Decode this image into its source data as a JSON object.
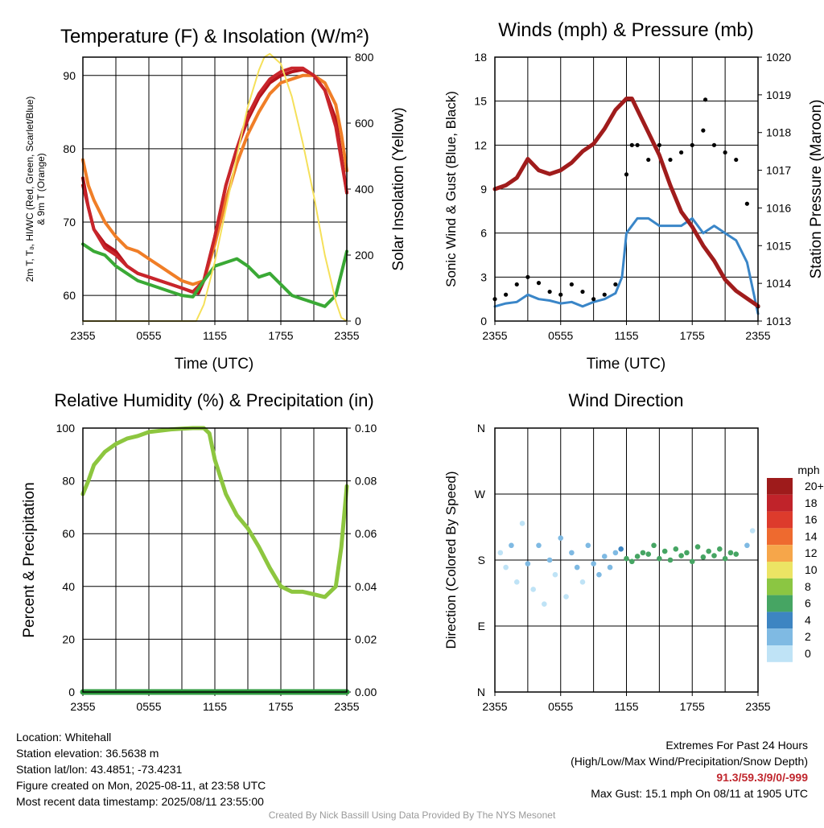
{
  "charts": {
    "temperature": {
      "title": "Temperature (F) & Insolation (W/m²)",
      "xlabel": "Time (UTC)",
      "ylabel_line1": "2m T, Tₔ, HI/WC (Red, Green, Scarlet/Blue)",
      "ylabel_line2": "& 9m T (Orange)",
      "ylabel_right": "Solar Insolation (Yellow)"
    },
    "winds": {
      "title": "Winds (mph) & Pressure (mb)",
      "xlabel": "Time (UTC)",
      "ylabel": "Sonic Wind & Gust (Blue, Black)",
      "ylabel_right": "Station Pressure (Maroon)"
    },
    "humidity": {
      "title": "Relative Humidity (%) & Precipitation (in)",
      "ylabel": "Percent & Precipitation"
    },
    "direction": {
      "title": "Wind Direction",
      "ylabel": "Direction (Colored By Speed)",
      "legend_title": "mph"
    }
  },
  "chart_data": [
    {
      "type": "line",
      "title": "Temperature (F) & Insolation (W/m²)",
      "xlabel": "Time (UTC)",
      "x_ticks": [
        "2355",
        "0555",
        "1155",
        "1755",
        "2355"
      ],
      "xlim_hours": [
        0,
        24
      ],
      "ylim": [
        56.5,
        92.5
      ],
      "y_ticks": [
        60,
        70,
        80,
        90
      ],
      "y2lim": [
        0,
        800
      ],
      "y2_ticks": [
        0,
        200,
        400,
        600,
        800
      ],
      "series": [
        {
          "name": "2m T",
          "color": "#b5121b",
          "axis": "left",
          "x": [
            0,
            0.5,
            1,
            2,
            3,
            4,
            5,
            6,
            7,
            8,
            9,
            9.9,
            10.5,
            11,
            12,
            13,
            14,
            15,
            16,
            17,
            18,
            19,
            20,
            21,
            22,
            23,
            23.5,
            24
          ],
          "y": [
            76,
            72,
            69,
            67,
            66,
            64,
            63,
            62.5,
            62,
            61.5,
            61,
            60.5,
            60.3,
            62,
            68,
            75,
            80,
            84,
            87,
            89,
            90,
            90.5,
            90.8,
            90,
            88,
            84,
            79,
            74
          ]
        },
        {
          "name": "9m T",
          "color": "#f07e27",
          "axis": "left",
          "x": [
            0,
            0.5,
            1,
            2,
            3,
            4,
            5,
            6,
            7,
            8,
            9,
            10,
            11,
            12,
            13,
            14,
            15,
            16,
            17,
            18,
            19,
            20,
            21,
            22,
            23,
            23.5,
            24
          ],
          "y": [
            78.5,
            75,
            73,
            70,
            68,
            66.5,
            66,
            65,
            64,
            63,
            62,
            61.5,
            62,
            67,
            73,
            78,
            82,
            85,
            87.5,
            89,
            89.5,
            90,
            90,
            89,
            86,
            82,
            77
          ]
        },
        {
          "name": "HI/WC",
          "color": "#c8252b",
          "axis": "left",
          "x": [
            0,
            1,
            2,
            3,
            4,
            5,
            6,
            7,
            8,
            9,
            10,
            11,
            12,
            13,
            14,
            15,
            16,
            17,
            18,
            19,
            20,
            21,
            22,
            23,
            24
          ],
          "y": [
            75,
            69,
            66.5,
            65.5,
            64,
            63,
            62.5,
            62,
            61.5,
            61,
            60.5,
            62,
            68,
            75,
            80,
            84.5,
            87.5,
            89.5,
            90.5,
            91,
            91,
            90,
            88,
            83,
            74
          ]
        },
        {
          "name": "Td",
          "color": "#3aa935",
          "axis": "left",
          "x": [
            0,
            1,
            2,
            3,
            4,
            5,
            6,
            7,
            8,
            9,
            10,
            11,
            12,
            13,
            14,
            15,
            16,
            17,
            18,
            19,
            20,
            21,
            22,
            23,
            23.5,
            24
          ],
          "y": [
            67,
            66,
            65.5,
            64,
            63,
            62,
            61.5,
            61,
            60.5,
            60,
            59.8,
            62,
            64,
            64.5,
            65,
            64,
            62.5,
            63,
            61.5,
            60,
            59.5,
            59,
            58.5,
            60,
            63,
            66
          ]
        },
        {
          "name": "Solar Insolation",
          "color": "#f5e05a",
          "axis": "right",
          "x": [
            0,
            5,
            9,
            10.3,
            11,
            12,
            13,
            14,
            15,
            16,
            16.5,
            17,
            18,
            19,
            20,
            21,
            22,
            23,
            23.5,
            24
          ],
          "y": [
            0,
            0,
            0,
            0,
            50,
            180,
            340,
            500,
            650,
            760,
            800,
            810,
            780,
            680,
            540,
            380,
            200,
            60,
            10,
            0
          ]
        }
      ]
    },
    {
      "type": "line",
      "title": "Winds (mph) & Pressure (mb)",
      "xlabel": "Time (UTC)",
      "x_ticks": [
        "2355",
        "0555",
        "1155",
        "1755",
        "2355"
      ],
      "xlim_hours": [
        0,
        24
      ],
      "ylim": [
        0,
        18
      ],
      "y_ticks": [
        0,
        3,
        6,
        9,
        12,
        15,
        18
      ],
      "y2lim": [
        1013,
        1020
      ],
      "y2_ticks": [
        1013,
        1014,
        1015,
        1016,
        1017,
        1018,
        1019,
        1020
      ],
      "series": [
        {
          "name": "Sonic Wind",
          "color": "#3a86c8",
          "axis": "left",
          "x": [
            0,
            1,
            2,
            3,
            4,
            5,
            6,
            7,
            8,
            9,
            10,
            11,
            11.6,
            12,
            13,
            14,
            15,
            16,
            17,
            18,
            19,
            20,
            21,
            22,
            23,
            24
          ],
          "y": [
            1,
            1.2,
            1.3,
            1.8,
            1.5,
            1.4,
            1.2,
            1.3,
            1,
            1.3,
            1.5,
            1.9,
            3,
            6,
            7,
            7,
            6.5,
            6.5,
            6.5,
            7,
            6,
            6.5,
            6,
            5.5,
            4,
            0.5
          ]
        },
        {
          "name": "Gust",
          "color": "#000000",
          "axis": "left",
          "style": "points",
          "x": [
            0,
            1,
            2,
            3,
            4,
            5,
            6,
            7,
            8,
            9,
            10,
            11,
            12,
            12.5,
            13,
            14,
            15,
            16,
            17,
            18,
            19,
            19.2,
            20,
            21,
            22,
            23,
            24
          ],
          "y": [
            1.5,
            1.8,
            2.5,
            3,
            2.6,
            2,
            1.8,
            2.5,
            2,
            1.5,
            1.8,
            2.5,
            10,
            12,
            12,
            11,
            12,
            11,
            11.5,
            12,
            13,
            15.1,
            12,
            11.5,
            11,
            8,
            1
          ]
        },
        {
          "name": "Station Pressure",
          "color": "#a01c1c",
          "axis": "right",
          "x": [
            0,
            1,
            2,
            3,
            4,
            5,
            6,
            7,
            8,
            9,
            10,
            11,
            12,
            12.5,
            13,
            14,
            15,
            16,
            17,
            18,
            19,
            20,
            21,
            22,
            23,
            24
          ],
          "y": [
            1016.5,
            1016.6,
            1016.8,
            1017.3,
            1017.0,
            1016.9,
            1017.0,
            1017.2,
            1017.5,
            1017.7,
            1018.1,
            1018.6,
            1018.9,
            1018.9,
            1018.6,
            1018.0,
            1017.4,
            1016.6,
            1015.9,
            1015.5,
            1015.0,
            1014.6,
            1014.1,
            1013.8,
            1013.6,
            1013.4
          ]
        }
      ]
    },
    {
      "type": "line",
      "title": "Relative Humidity (%) & Precipitation (in)",
      "x_ticks": [
        "2355",
        "0555",
        "1155",
        "1755",
        "2355"
      ],
      "xlim_hours": [
        0,
        24
      ],
      "ylim": [
        0,
        100
      ],
      "y_ticks": [
        0,
        20,
        40,
        60,
        80,
        100
      ],
      "y2lim": [
        0,
        0.1
      ],
      "y2_ticks": [
        "0.00",
        "0.02",
        "0.04",
        "0.06",
        "0.08",
        "0.10"
      ],
      "series": [
        {
          "name": "Relative Humidity",
          "color": "#8dc63f",
          "axis": "left",
          "x": [
            0,
            0.5,
            1,
            2,
            3,
            4,
            5,
            6,
            7,
            8,
            9,
            10,
            11,
            11.5,
            12,
            13,
            14,
            15,
            16,
            17,
            18,
            19,
            20,
            21,
            22,
            23,
            23.5,
            24
          ],
          "y": [
            75,
            80,
            86,
            91,
            94,
            96,
            97,
            98.5,
            99,
            99.5,
            99.8,
            100,
            100,
            98,
            88,
            75,
            67,
            62,
            55,
            47,
            40,
            38,
            38,
            37,
            36,
            40,
            55,
            78
          ]
        },
        {
          "name": "Precipitation",
          "color": "#2e9a3e",
          "axis": "right",
          "x": [
            0,
            24
          ],
          "y": [
            0,
            0
          ]
        }
      ]
    },
    {
      "type": "scatter",
      "title": "Wind Direction",
      "ylabel": "Direction (Colored By Speed)",
      "x_ticks": [
        "2355",
        "0555",
        "1155",
        "1755",
        "2355"
      ],
      "xlim_hours": [
        0,
        24
      ],
      "ylim": [
        0,
        360
      ],
      "y_ticks": [
        "N",
        "E",
        "S",
        "W",
        "N"
      ],
      "legend_title": "mph",
      "legend": [
        "20+",
        "18",
        "16",
        "14",
        "12",
        "10",
        "8",
        "6",
        "4",
        "2",
        "0"
      ],
      "legend_colors": [
        "#9e1b1b",
        "#c0232a",
        "#dd3b2c",
        "#ee6a2f",
        "#f6a64a",
        "#ece464",
        "#8bc642",
        "#46a563",
        "#3d85c2",
        "#7fbae3",
        "#bfe3f6"
      ],
      "points": [
        {
          "x": 0.5,
          "y": 190,
          "mph": 1
        },
        {
          "x": 1,
          "y": 170,
          "mph": 1
        },
        {
          "x": 1.5,
          "y": 200,
          "mph": 2
        },
        {
          "x": 2,
          "y": 150,
          "mph": 1
        },
        {
          "x": 2.5,
          "y": 230,
          "mph": 1
        },
        {
          "x": 3,
          "y": 175,
          "mph": 2
        },
        {
          "x": 3.5,
          "y": 140,
          "mph": 1
        },
        {
          "x": 4,
          "y": 200,
          "mph": 2
        },
        {
          "x": 4.5,
          "y": 120,
          "mph": 1
        },
        {
          "x": 5,
          "y": 180,
          "mph": 3
        },
        {
          "x": 5.5,
          "y": 160,
          "mph": 1
        },
        {
          "x": 6,
          "y": 210,
          "mph": 2
        },
        {
          "x": 6.5,
          "y": 130,
          "mph": 1
        },
        {
          "x": 7,
          "y": 190,
          "mph": 3
        },
        {
          "x": 7.5,
          "y": 170,
          "mph": 2
        },
        {
          "x": 8,
          "y": 150,
          "mph": 1
        },
        {
          "x": 8.5,
          "y": 200,
          "mph": 2
        },
        {
          "x": 9,
          "y": 175,
          "mph": 3
        },
        {
          "x": 9.5,
          "y": 160,
          "mph": 2
        },
        {
          "x": 10,
          "y": 185,
          "mph": 2
        },
        {
          "x": 10.5,
          "y": 170,
          "mph": 3
        },
        {
          "x": 11,
          "y": 190,
          "mph": 2
        },
        {
          "x": 11.5,
          "y": 195,
          "mph": 4
        },
        {
          "x": 12,
          "y": 182,
          "mph": 6
        },
        {
          "x": 12.5,
          "y": 178,
          "mph": 7
        },
        {
          "x": 13,
          "y": 185,
          "mph": 7
        },
        {
          "x": 13.5,
          "y": 190,
          "mph": 6
        },
        {
          "x": 14,
          "y": 188,
          "mph": 7
        },
        {
          "x": 14.5,
          "y": 200,
          "mph": 6
        },
        {
          "x": 15,
          "y": 182,
          "mph": 7
        },
        {
          "x": 15.5,
          "y": 192,
          "mph": 6
        },
        {
          "x": 16,
          "y": 180,
          "mph": 7
        },
        {
          "x": 16.5,
          "y": 195,
          "mph": 6
        },
        {
          "x": 17,
          "y": 186,
          "mph": 7
        },
        {
          "x": 17.5,
          "y": 190,
          "mph": 6
        },
        {
          "x": 18,
          "y": 178,
          "mph": 7
        },
        {
          "x": 18.5,
          "y": 198,
          "mph": 6
        },
        {
          "x": 19,
          "y": 184,
          "mph": 7
        },
        {
          "x": 19.5,
          "y": 192,
          "mph": 7
        },
        {
          "x": 20,
          "y": 186,
          "mph": 6
        },
        {
          "x": 20.5,
          "y": 195,
          "mph": 7
        },
        {
          "x": 21,
          "y": 182,
          "mph": 6
        },
        {
          "x": 21.5,
          "y": 190,
          "mph": 7
        },
        {
          "x": 22,
          "y": 188,
          "mph": 6
        },
        {
          "x": 23,
          "y": 200,
          "mph": 2
        },
        {
          "x": 23.5,
          "y": 220,
          "mph": 1
        }
      ]
    }
  ],
  "station_info": {
    "location": "Location: Whitehall",
    "elevation": "Station elevation: 36.5638 m",
    "latlon": "Station lat/lon: 43.4851; -73.4231",
    "created": "Figure created on Mon, 2025-08-11, at 23:58 UTC",
    "recent": "Most recent data timestamp: 2025/08/11 23:55:00"
  },
  "extremes": {
    "title": "Extremes For Past 24 Hours",
    "subtitle": "(High/Low/Max Wind/Precipitation/Snow Depth)",
    "values": "91.3/59.3/9/0/-999",
    "max_gust": "Max Gust: 15.1 mph On 08/11 at 1905 UTC"
  },
  "credit": "Created By Nick Bassill Using Data Provided By The NYS Mesonet"
}
